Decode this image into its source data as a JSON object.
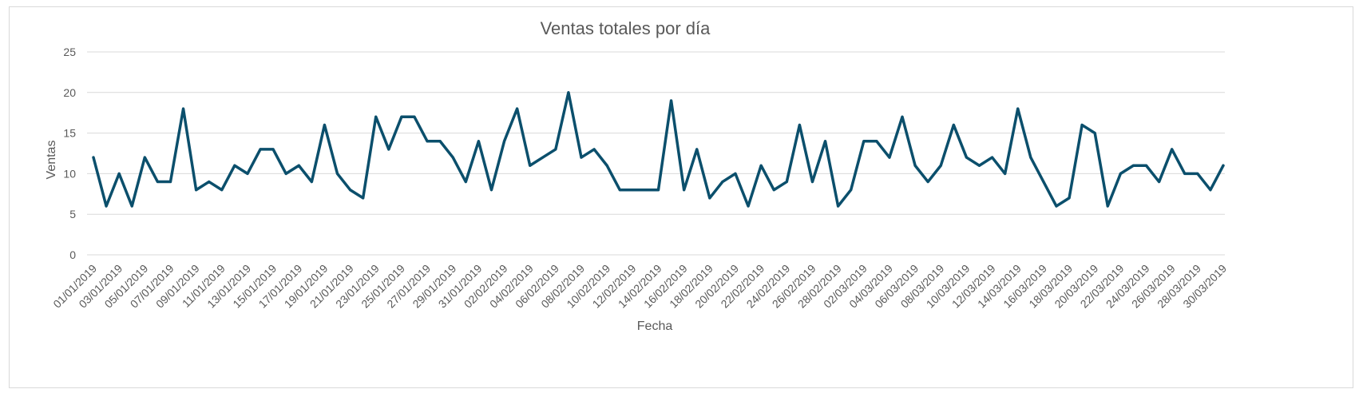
{
  "chart_data": {
    "type": "line",
    "title": "Ventas totales por día",
    "xlabel": "Fecha",
    "ylabel": "Ventas",
    "ylim": [
      0,
      25
    ],
    "yticks": [
      0,
      5,
      10,
      15,
      20,
      25
    ],
    "grid": true,
    "colors": {
      "line": "#0b4f6c",
      "grid": "#d9d9d9",
      "text": "#595959"
    },
    "x": [
      "01/01/2019",
      "02/01/2019",
      "03/01/2019",
      "04/01/2019",
      "05/01/2019",
      "06/01/2019",
      "07/01/2019",
      "08/01/2019",
      "09/01/2019",
      "10/01/2019",
      "11/01/2019",
      "12/01/2019",
      "13/01/2019",
      "14/01/2019",
      "15/01/2019",
      "16/01/2019",
      "17/01/2019",
      "18/01/2019",
      "19/01/2019",
      "20/01/2019",
      "21/01/2019",
      "22/01/2019",
      "23/01/2019",
      "24/01/2019",
      "25/01/2019",
      "26/01/2019",
      "27/01/2019",
      "28/01/2019",
      "29/01/2019",
      "30/01/2019",
      "31/01/2019",
      "01/02/2019",
      "02/02/2019",
      "03/02/2019",
      "04/02/2019",
      "05/02/2019",
      "06/02/2019",
      "07/02/2019",
      "08/02/2019",
      "09/02/2019",
      "10/02/2019",
      "11/02/2019",
      "12/02/2019",
      "13/02/2019",
      "14/02/2019",
      "15/02/2019",
      "16/02/2019",
      "17/02/2019",
      "18/02/2019",
      "19/02/2019",
      "20/02/2019",
      "21/02/2019",
      "22/02/2019",
      "23/02/2019",
      "24/02/2019",
      "25/02/2019",
      "26/02/2019",
      "27/02/2019",
      "28/02/2019",
      "01/03/2019",
      "02/03/2019",
      "03/03/2019",
      "04/03/2019",
      "05/03/2019",
      "06/03/2019",
      "07/03/2019",
      "08/03/2019",
      "09/03/2019",
      "10/03/2019",
      "11/03/2019",
      "12/03/2019",
      "13/03/2019",
      "14/03/2019",
      "15/03/2019",
      "16/03/2019",
      "17/03/2019",
      "18/03/2019",
      "19/03/2019",
      "20/03/2019",
      "21/03/2019",
      "22/03/2019",
      "23/03/2019",
      "24/03/2019",
      "25/03/2019",
      "26/03/2019",
      "27/03/2019",
      "28/03/2019",
      "29/03/2019",
      "30/03/2019"
    ],
    "series": [
      {
        "values": [
          12,
          6,
          10,
          6,
          12,
          9,
          9,
          18,
          8,
          9,
          8,
          11,
          10,
          13,
          13,
          10,
          11,
          9,
          16,
          10,
          8,
          7,
          17,
          13,
          17,
          17,
          14,
          14,
          12,
          9,
          14,
          8,
          14,
          18,
          11,
          12,
          13,
          20,
          12,
          13,
          11,
          8,
          8,
          8,
          8,
          19,
          8,
          13,
          7,
          9,
          10,
          6,
          11,
          8,
          9,
          16,
          9,
          14,
          6,
          8,
          14,
          14,
          12,
          17,
          11,
          9,
          11,
          16,
          12,
          11,
          12,
          10,
          18,
          12,
          9,
          6,
          7,
          16,
          15,
          6,
          10,
          11,
          11,
          9,
          13,
          10,
          10,
          8,
          11
        ]
      }
    ]
  }
}
